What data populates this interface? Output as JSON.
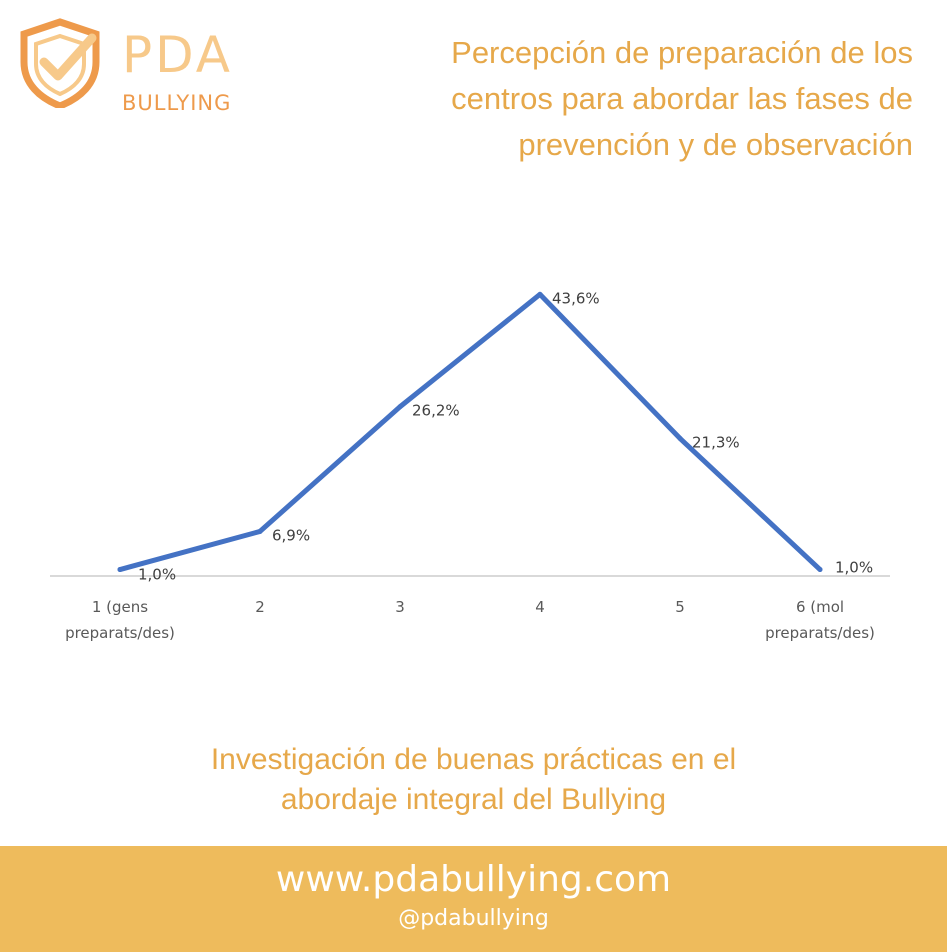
{
  "colors": {
    "accent": "#E6A84A",
    "line": "#4472C4",
    "footer_bg": "#EEBB5C",
    "logo_light": "#F7C98A",
    "logo_dark": "#EE9A4B",
    "axis": "#D9D9D9"
  },
  "logo": {
    "line1": "PDA",
    "line2": "BULLYING",
    "icon": "shield-check-icon"
  },
  "header": {
    "title": "Percepción de preparación de los centros para abordar las fases de prevención y de observación"
  },
  "chart_data": {
    "type": "line",
    "categories": [
      "1 (gens preparats/des)",
      "2",
      "3",
      "4",
      "5",
      "6 (mol preparats/des)"
    ],
    "category_lines": [
      [
        "1 (gens",
        "preparats/des)"
      ],
      [
        "2"
      ],
      [
        "3"
      ],
      [
        "4"
      ],
      [
        "5"
      ],
      [
        "6 (mol",
        "preparats/des)"
      ]
    ],
    "values": [
      1.0,
      6.9,
      26.2,
      43.6,
      21.3,
      1.0
    ],
    "data_labels": [
      "1,0%",
      "6,9%",
      "26,2%",
      "43,6%",
      "21,3%",
      "1,0%"
    ],
    "ylim": [
      0,
      50
    ],
    "grid": false,
    "legend": "none"
  },
  "subtitle": {
    "line1": "Investigación de buenas prácticas en el",
    "line2": "abordaje integral del Bullying"
  },
  "footer": {
    "url": "www.pdabullying.com",
    "handle": "@pdabullying"
  }
}
